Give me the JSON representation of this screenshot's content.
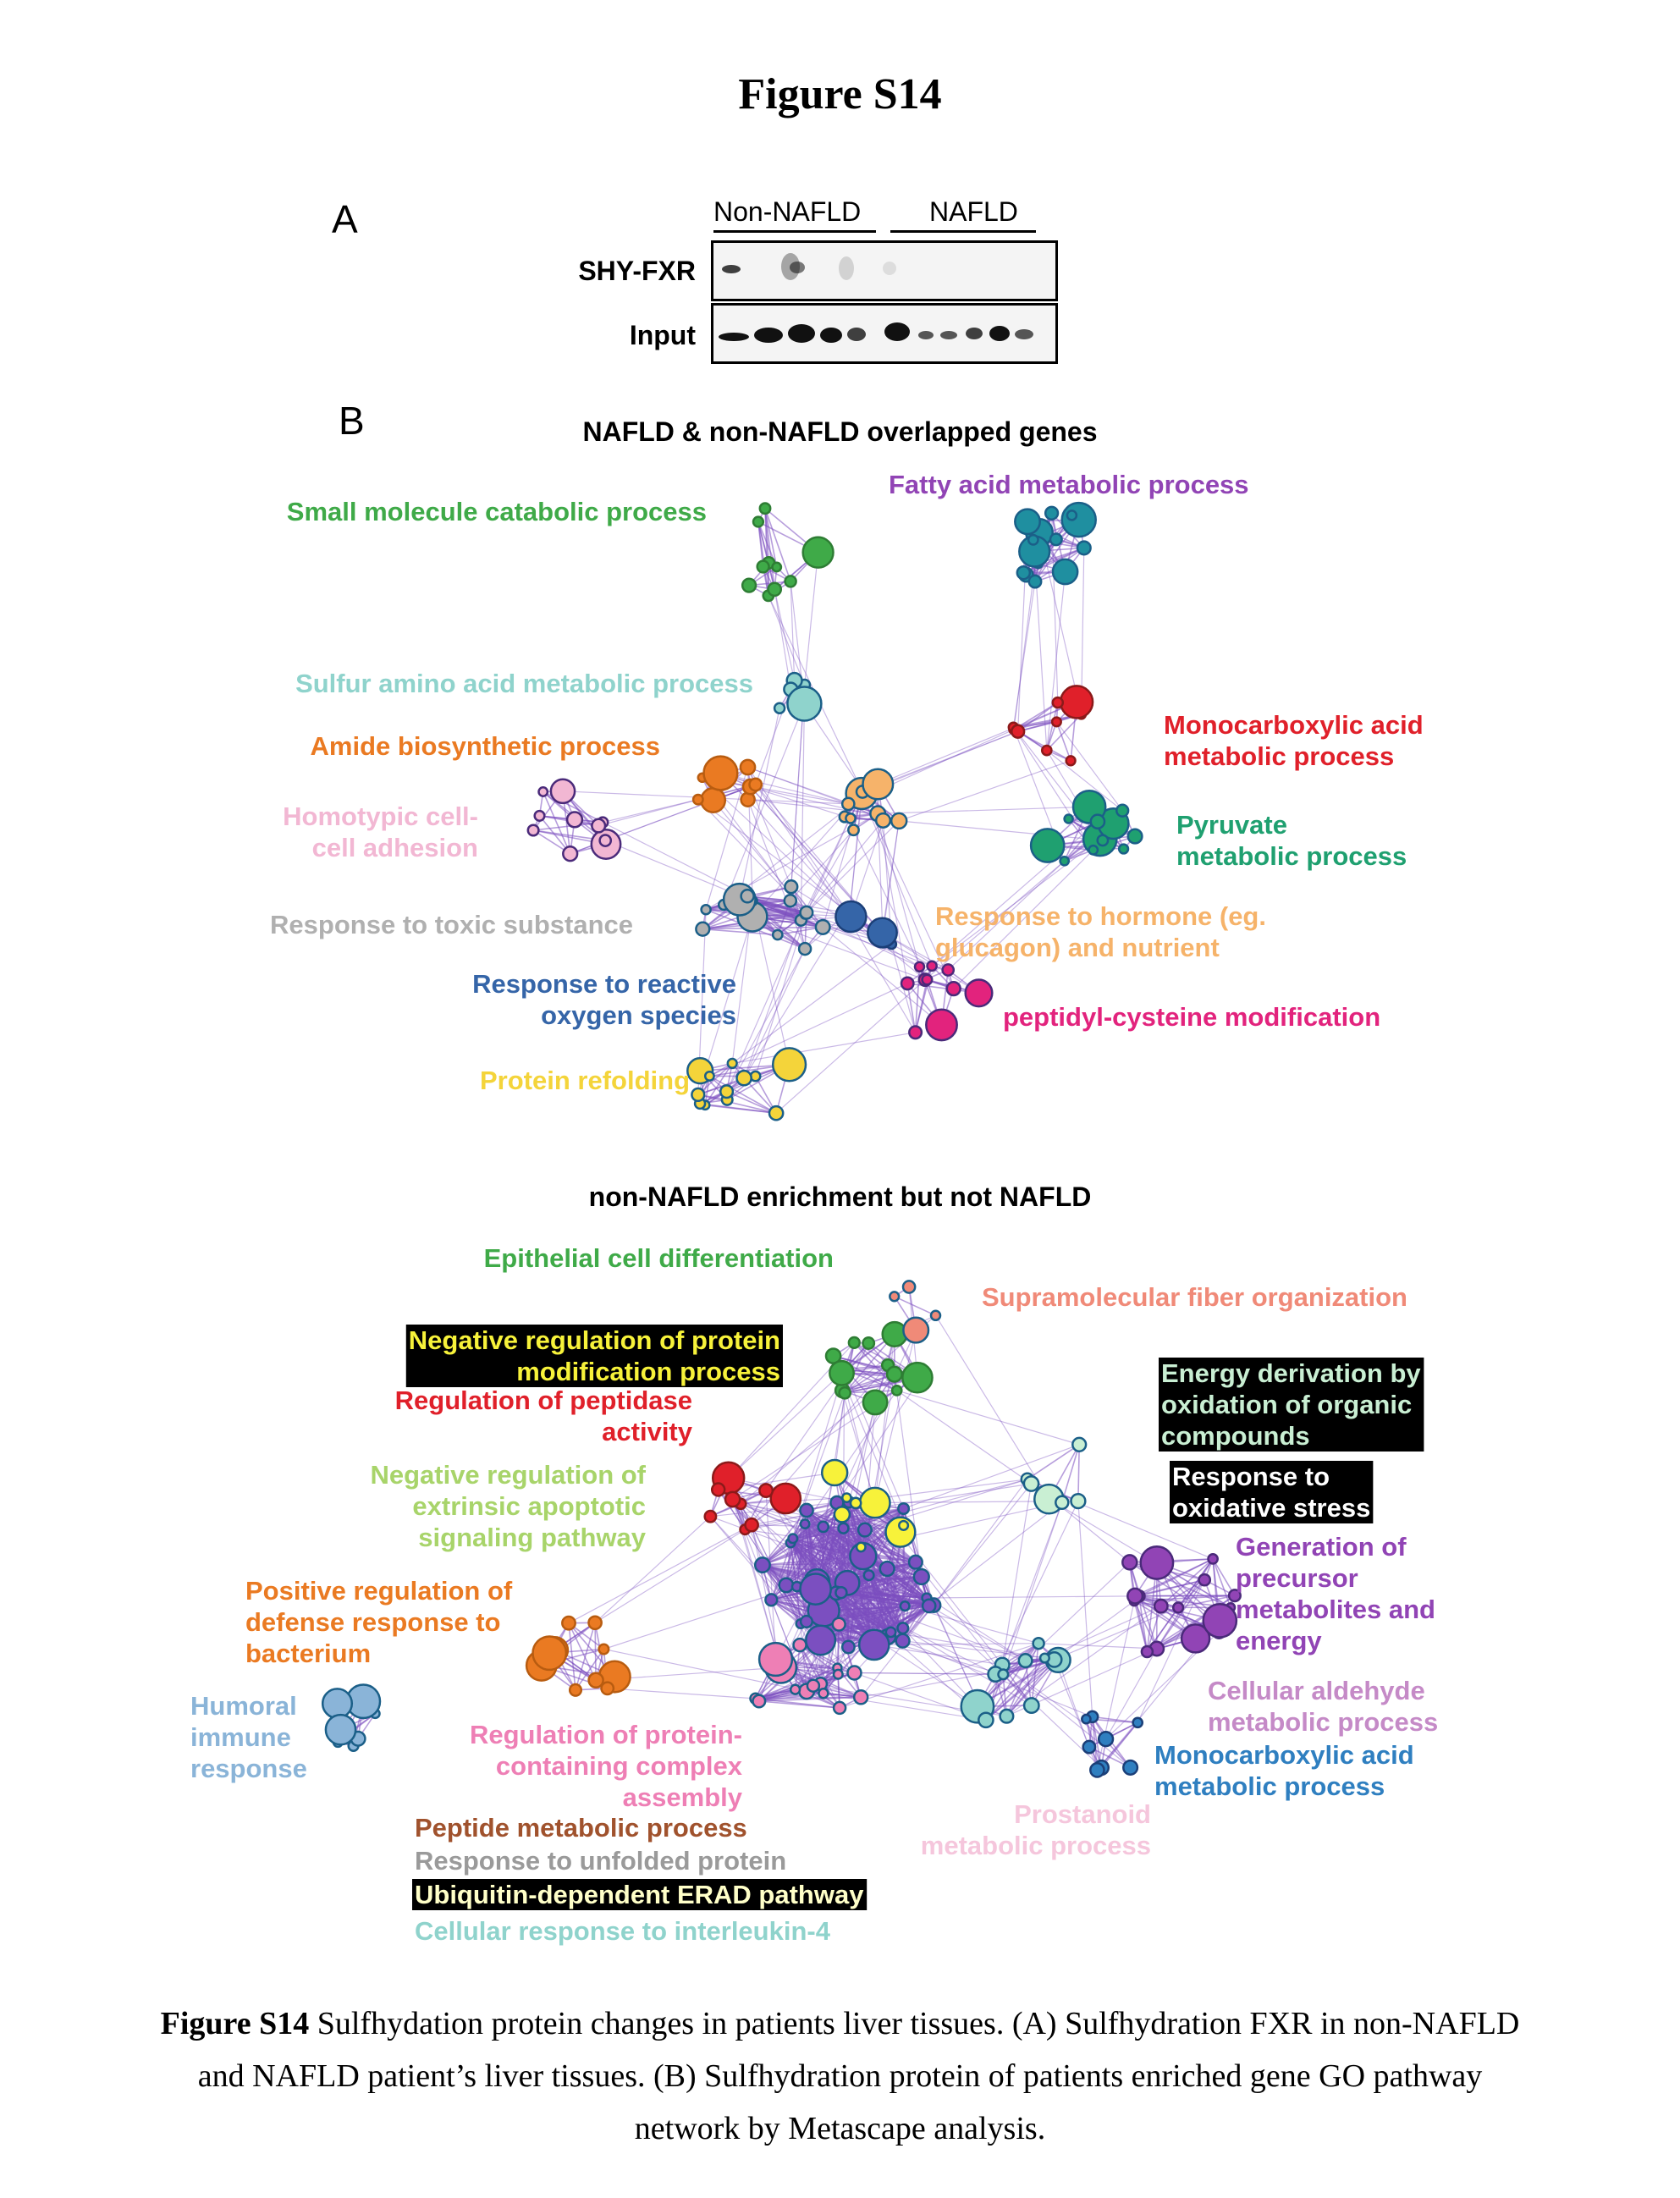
{
  "figure_title": "Figure S14",
  "panel_a": {
    "letter": "A",
    "groups": [
      "Non-NAFLD",
      "NAFLD"
    ],
    "rows": [
      "SHY-FXR",
      "Input"
    ]
  },
  "panel_b": {
    "letter": "B",
    "network1_title": "NAFLD & non-NAFLD overlapped  genes",
    "network2_title": "non-NAFLD enrichment but not NAFLD",
    "network1_labels": [
      {
        "lines": [
          "Small molecule catabolic process"
        ],
        "color": "#3faa48",
        "highlight": ""
      },
      {
        "lines": [
          "Fatty acid metabolic process"
        ],
        "color": "#9144b5",
        "highlight": ""
      },
      {
        "lines": [
          "Sulfur amino acid metabolic process"
        ],
        "color": "#8fd3cc",
        "highlight": ""
      },
      {
        "lines": [
          "Amide biosynthetic process"
        ],
        "color": "#ea7a22",
        "highlight": ""
      },
      {
        "lines": [
          "Monocarboxylic acid",
          "metabolic process"
        ],
        "color": "#e0202a",
        "highlight": ""
      },
      {
        "lines": [
          "Homotypic cell-",
          "cell adhesion"
        ],
        "color": "#f2b7d3",
        "highlight": ""
      },
      {
        "lines": [
          "Pyruvate",
          "metabolic process"
        ],
        "color": "#1fa070",
        "highlight": ""
      },
      {
        "lines": [
          "Response to toxic substance"
        ],
        "color": "#b0b0b0",
        "highlight": ""
      },
      {
        "lines": [
          "Response to hormone (eg.",
          "glucagon) and nutrient"
        ],
        "color": "#f6b36a",
        "highlight": ""
      },
      {
        "lines": [
          "Response to reactive",
          "oxygen species"
        ],
        "color": "#3565a8",
        "highlight": ""
      },
      {
        "lines": [
          "peptidyl-cysteine modification"
        ],
        "color": "#e2237d",
        "highlight": ""
      },
      {
        "lines": [
          "Protein refolding"
        ],
        "color": "#f4d43a",
        "highlight": ""
      }
    ],
    "network2_labels": [
      {
        "lines": [
          "Epithelial cell differentiation"
        ],
        "color": "#3faa48",
        "highlight": ""
      },
      {
        "lines": [
          "Supramolecular fiber organization"
        ],
        "color": "#f08a78",
        "highlight": ""
      },
      {
        "lines": [
          "Negative regulation of protein",
          "modification process"
        ],
        "color": "#f7f23a",
        "highlight": "#000000"
      },
      {
        "lines": [
          "Regulation of peptidase",
          "activity"
        ],
        "color": "#e0202a",
        "highlight": ""
      },
      {
        "lines": [
          "Energy derivation by",
          "oxidation of organic",
          "compounds"
        ],
        "color": "#c9efd3",
        "highlight": "#000000"
      },
      {
        "lines": [
          "Response to",
          "oxidative stress"
        ],
        "color": "#ffffff",
        "highlight": "#000000"
      },
      {
        "lines": [
          "Negative regulation of",
          "extrinsic apoptotic",
          "signaling pathway"
        ],
        "color": "#a8d46a",
        "highlight": ""
      },
      {
        "lines": [
          "Generation of",
          "precursor",
          "metabolites and",
          "energy"
        ],
        "color": "#9144b5",
        "highlight": ""
      },
      {
        "lines": [
          "Positive regulation of",
          "defense response to",
          "bacterium"
        ],
        "color": "#ea7a22",
        "highlight": ""
      },
      {
        "lines": [
          "Cellular aldehyde",
          "metabolic process"
        ],
        "color": "#c58ac7",
        "highlight": ""
      },
      {
        "lines": [
          "Humoral",
          "immune",
          "response"
        ],
        "color": "#8ab4d8",
        "highlight": ""
      },
      {
        "lines": [
          "Regulation of protein-",
          "containing complex",
          "assembly"
        ],
        "color": "#ee7fb5",
        "highlight": ""
      },
      {
        "lines": [
          "Monocarboxylic acid",
          "metabolic process"
        ],
        "color": "#2f7fc0",
        "highlight": ""
      },
      {
        "lines": [
          "Prostanoid",
          "metabolic process"
        ],
        "color": "#f5c6dc",
        "highlight": ""
      },
      {
        "lines": [
          "Peptide metabolic process"
        ],
        "color": "#a0522d",
        "highlight": ""
      },
      {
        "lines": [
          "Response to unfolded protein"
        ],
        "color": "#9a9a9a",
        "highlight": ""
      },
      {
        "lines": [
          "Ubiquitin-dependent ERAD pathway"
        ],
        "color": "#ffffc8",
        "highlight": "#000000"
      },
      {
        "lines": [
          "Cellular response to interleukin-4"
        ],
        "color": "#8fd3cc",
        "highlight": ""
      }
    ],
    "edge_color": "#7b4fc0"
  },
  "caption": {
    "label": "Figure S14",
    "text": " Sulfhydation protein changes in patients liver tissues. (A) Sulfhydration FXR in non-NAFLD and NAFLD patient’s liver tissues. (B) Sulfhydration protein of patients enriched gene GO pathway network by Metascape analysis."
  }
}
